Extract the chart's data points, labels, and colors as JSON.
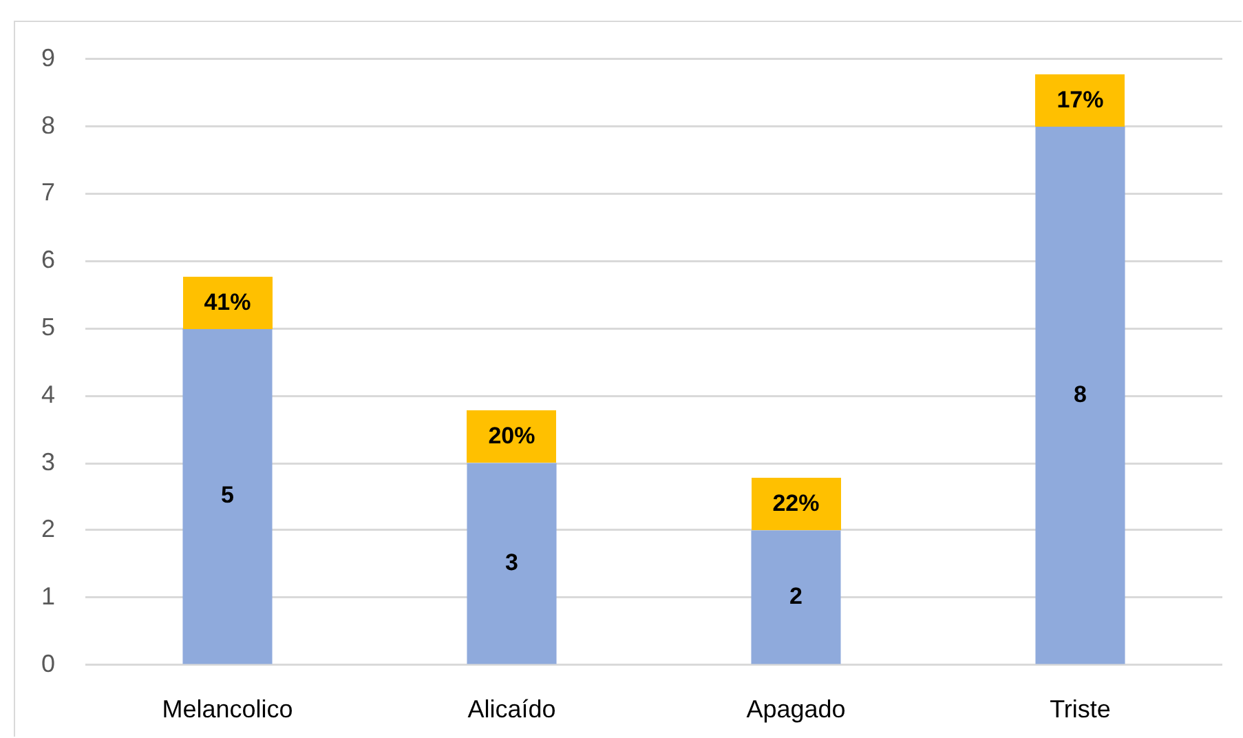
{
  "chart_data": {
    "type": "bar",
    "categories": [
      "Melancolico",
      "Alicaído",
      "Apagado",
      "Triste"
    ],
    "values": [
      5,
      3,
      2,
      8
    ],
    "color": "#8faadc",
    "ylim": [
      0,
      9
    ],
    "yticks": [
      0,
      1,
      2,
      3,
      4,
      5,
      6,
      7,
      8,
      9
    ],
    "grid": "y",
    "data_labels": true,
    "annotations": [
      {
        "text": "41%",
        "x": "Melancolico",
        "y": 5
      },
      {
        "text": "20%",
        "x": "Alicaído",
        "y": 3
      },
      {
        "text": "22%",
        "x": "Apagado",
        "y": 2
      },
      {
        "text": "17%",
        "x": "Triste",
        "y": 8
      }
    ]
  }
}
